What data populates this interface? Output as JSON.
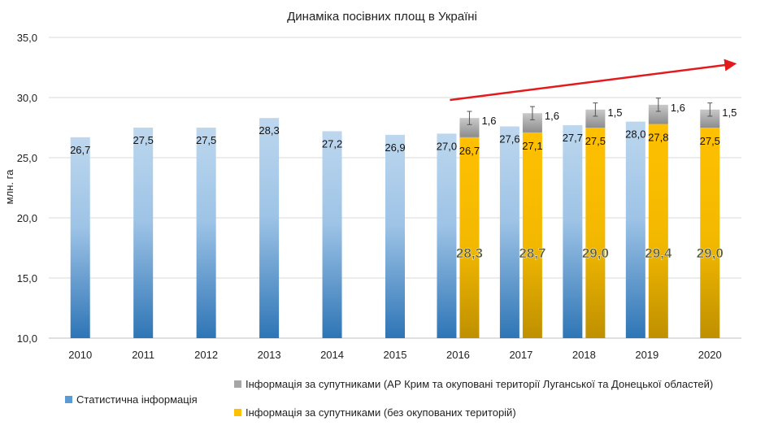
{
  "chart_data": {
    "type": "bar",
    "title": "Динаміка посівних площ в Україні",
    "ylabel": "млн. га",
    "xlabel": "",
    "ylim": [
      10,
      35
    ],
    "yticks": [
      "10,0",
      "15,0",
      "20,0",
      "25,0",
      "30,0",
      "35,0"
    ],
    "grid": true,
    "categories": [
      "2010",
      "2011",
      "2012",
      "2013",
      "2014",
      "2015",
      "2016",
      "2017",
      "2018",
      "2019",
      "2020"
    ],
    "series": [
      {
        "name": "Статистична інформація",
        "values": [
          26.7,
          27.5,
          27.5,
          28.3,
          27.2,
          26.9,
          27.0,
          27.6,
          27.7,
          28.0,
          null
        ],
        "labels": [
          "26,7",
          "27,5",
          "27,5",
          "28,3",
          "27,2",
          "26,9",
          "27,0",
          "27,6",
          "27,7",
          "28,0",
          ""
        ],
        "color": "#2e75b6"
      },
      {
        "name": "Інформація за супутниками (без окупованих територій)",
        "values": [
          null,
          null,
          null,
          null,
          null,
          null,
          26.7,
          27.1,
          27.5,
          27.8,
          27.5
        ],
        "labels": [
          "",
          "",
          "",
          "",
          "",
          "",
          "26,7",
          "27,1",
          "27,5",
          "27,8",
          "27,5"
        ],
        "color": "#ffc000"
      },
      {
        "name": "Інформація за супутниками (АР Крим та окуповані території Луганської та Донецької областей)",
        "values": [
          null,
          null,
          null,
          null,
          null,
          null,
          1.6,
          1.6,
          1.5,
          1.6,
          1.5
        ],
        "labels": [
          "",
          "",
          "",
          "",
          "",
          "",
          "1,6",
          "1,6",
          "1,5",
          "1,6",
          "1,5"
        ],
        "color": "#a6a6a6"
      }
    ],
    "totals": [
      "",
      "",
      "",
      "",
      "",
      "",
      "28,3",
      "28,7",
      "29,0",
      "29,4",
      "29,0"
    ],
    "trend_arrow": {
      "color": "#e31a1c",
      "from": [
        "2016",
        30.0
      ],
      "to": [
        "2020",
        32.8
      ]
    },
    "legend_position": "bottom"
  },
  "legend": {
    "gray": "Інформація за супутниками (АР Крим та окуповані території Луганської та Донецької областей)",
    "blue": "Статистична інформація",
    "yellow": "Інформація за супутниками (без окупованих територій)"
  }
}
